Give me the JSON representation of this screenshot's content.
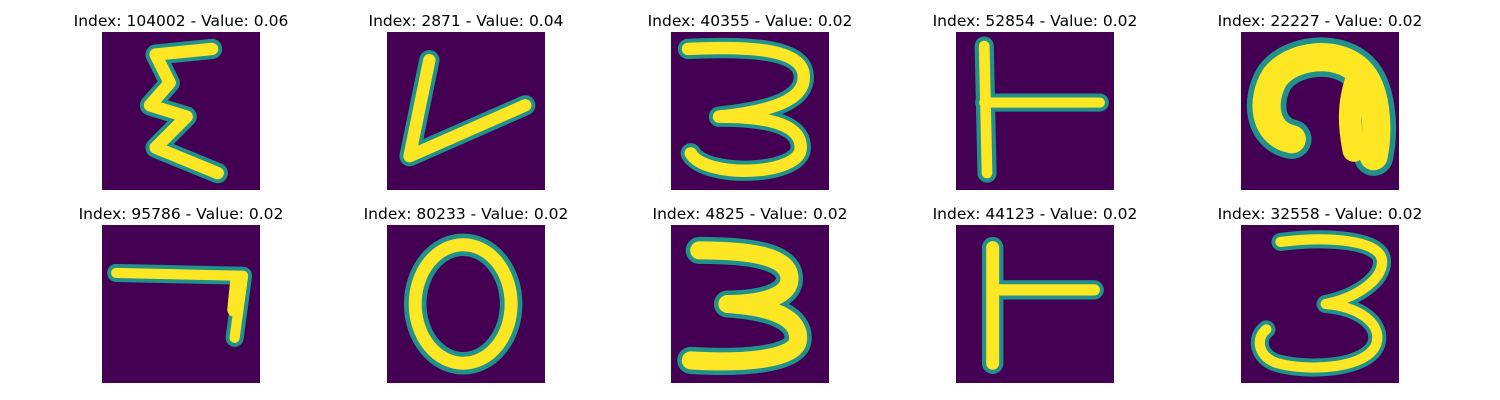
{
  "figure": {
    "colors": {
      "background": "#440154",
      "edge": "#21918c",
      "stroke": "#fde725",
      "mid": "#5ec962"
    },
    "panels": [
      {
        "title": "Index: 104002 - Value: 0.06"
      },
      {
        "title": "Index: 2871 - Value: 0.04"
      },
      {
        "title": "Index: 40355 - Value: 0.02"
      },
      {
        "title": "Index: 52854 - Value: 0.02"
      },
      {
        "title": "Index: 22227 - Value: 0.02"
      },
      {
        "title": "Index: 95786 - Value: 0.02"
      },
      {
        "title": "Index: 80233 - Value: 0.02"
      },
      {
        "title": "Index: 4825 - Value: 0.02"
      },
      {
        "title": "Index: 44123 - Value: 0.02"
      },
      {
        "title": "Index: 32558 - Value: 0.02"
      }
    ]
  }
}
